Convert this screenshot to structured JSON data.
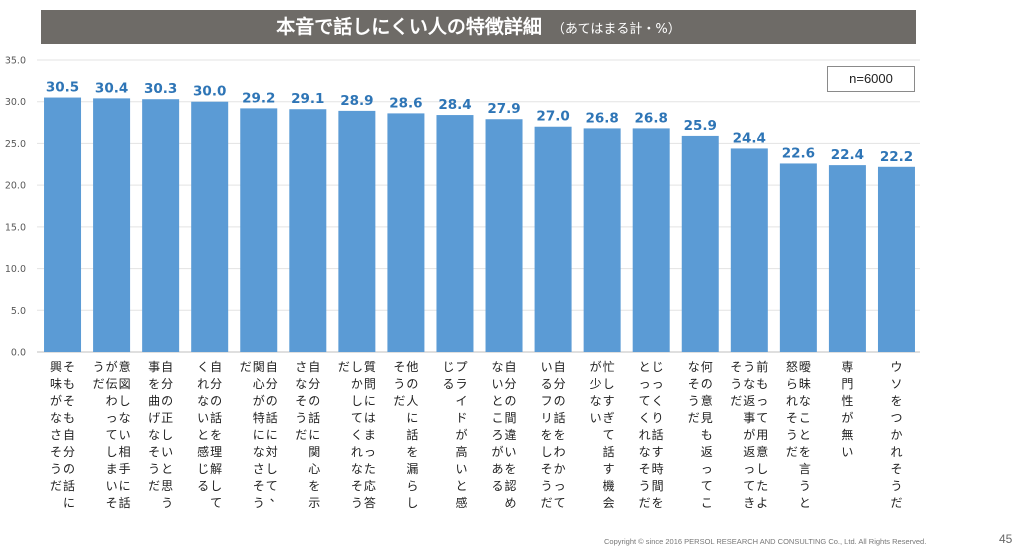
{
  "header": {
    "title": "本音で話しにくい人の特徴詳細",
    "subtitle": "（あてはまる計・%）"
  },
  "sample_label": "n=6000",
  "footer": "Copyright © since 2016  PERSOL  RESEARCH AND CONSULTING Co., Ltd. All Rights Reserved.",
  "page_number": "45",
  "colors": {
    "bar": "#5b9bd5",
    "value_label": "#2e75b6",
    "title_bg": "#6e6b67"
  },
  "chart_data": {
    "type": "bar",
    "title": "本音で話しにくい人の特徴詳細",
    "xlabel": "",
    "ylabel": "",
    "ylim": [
      0,
      35
    ],
    "yticks": [
      "0.0",
      "5.0",
      "10.0",
      "15.0",
      "20.0",
      "25.0",
      "30.0",
      "35.0"
    ],
    "grid": true,
    "categories": [
      "そもそも自分の話に興味がなさそうだ",
      "意図しない相手に話が伝わってしまいそうだ",
      "自分の正しいと思う事を曲げなそうだ",
      "自分の話を理解してくれないと感じる",
      "自分の話に対して、関心が特になさそうだ",
      "自分の話に関心を示さなそうだ",
      "質問にはまった応答しかしてくれなそうだ",
      "他の人に話を漏らしそうだ",
      "プライドが高いと感じる",
      "自分の間違いを認めないところがある",
      "自分の話をわかっているフリをしそうだ",
      "忙しすぎて話す機会が少ない",
      "じっくり話す時間をとってくれなそうだ",
      "何の意見も返ってこなそうだ",
      "前もって用意したような返事が返ってきそうだ",
      "曖昧なことを言うと怒られそうだ",
      "専門性が無い",
      "ウソをつかれそうだ"
    ],
    "values": [
      30.5,
      30.4,
      30.3,
      30.0,
      29.2,
      29.1,
      28.9,
      28.6,
      28.4,
      27.9,
      27.0,
      26.8,
      26.8,
      25.9,
      24.4,
      22.6,
      22.4,
      22.2
    ],
    "value_labels": [
      "30.5",
      "30.4",
      "30.3",
      "30.0",
      "29.2",
      "29.1",
      "28.9",
      "28.6",
      "28.4",
      "27.9",
      "27.0",
      "26.8",
      "26.8",
      "25.9",
      "24.4",
      "22.6",
      "22.4",
      "22.2"
    ]
  }
}
